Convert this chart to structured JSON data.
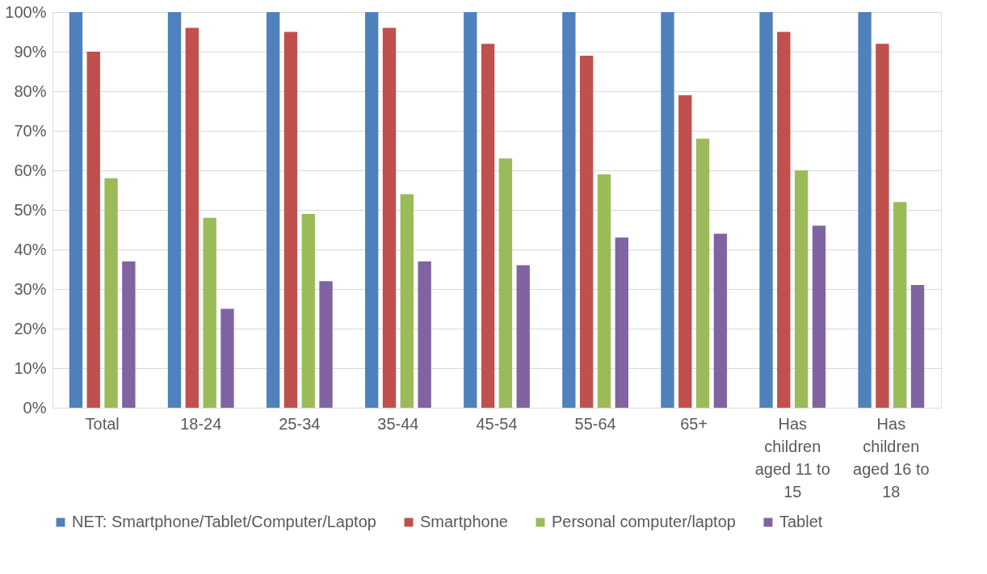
{
  "chart_data": {
    "type": "bar",
    "categories": [
      "Total",
      "18-24",
      "25-34",
      "35-44",
      "45-54",
      "55-64",
      "65+",
      "Has children aged 11 to 15",
      "Has children aged 16 to 18"
    ],
    "series": [
      {
        "name": "NET: Smartphone/Tablet/Computer/Laptop",
        "color": "#4f81bd",
        "values": [
          100,
          100,
          100,
          100,
          100,
          100,
          100,
          100,
          100
        ]
      },
      {
        "name": "Smartphone",
        "color": "#c0504d",
        "values": [
          90,
          96,
          95,
          96,
          92,
          89,
          79,
          95,
          92
        ]
      },
      {
        "name": "Personal computer/laptop",
        "color": "#9bbb59",
        "values": [
          58,
          48,
          49,
          54,
          63,
          59,
          68,
          60,
          52
        ]
      },
      {
        "name": "Tablet",
        "color": "#8064a2",
        "values": [
          37,
          25,
          32,
          37,
          36,
          43,
          44,
          46,
          31
        ]
      }
    ],
    "ylim": [
      0,
      100
    ],
    "yticks": [
      {
        "value": 0,
        "label": "0%"
      },
      {
        "value": 10,
        "label": "10%"
      },
      {
        "value": 20,
        "label": "20%"
      },
      {
        "value": 30,
        "label": "30%"
      },
      {
        "value": 40,
        "label": "40%"
      },
      {
        "value": 50,
        "label": "50%"
      },
      {
        "value": 60,
        "label": "60%"
      },
      {
        "value": 70,
        "label": "70%"
      },
      {
        "value": 80,
        "label": "80%"
      },
      {
        "value": 90,
        "label": "90%"
      },
      {
        "value": 100,
        "label": "100%"
      }
    ],
    "grid": "y",
    "legend": "bottom"
  }
}
